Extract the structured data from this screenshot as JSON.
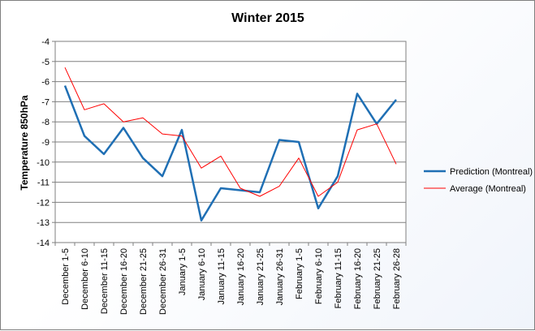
{
  "chart_data": {
    "type": "line",
    "title": "Winter 2015",
    "ylabel": "Temperature 850hPa",
    "xlabel": "",
    "ylim": [
      -14,
      -4
    ],
    "yticks": [
      -4,
      -5,
      -6,
      -7,
      -8,
      -9,
      -10,
      -11,
      -12,
      -13,
      -14
    ],
    "categories": [
      "December 1-5",
      "December 6-10",
      "December 11-15",
      "December 16-20",
      "December 21-25",
      "December 26-31",
      "January 1-5",
      "January 6-10",
      "January 11-15",
      "January 16-20",
      "January 21-25",
      "January 26-31",
      "February 1-5",
      "February 6-10",
      "February 11-15",
      "February 16-20",
      "February 21-25",
      "February 26-28"
    ],
    "series": [
      {
        "name": "Prediction (Montreal)",
        "color": "#1f6fb4",
        "values": [
          -6.2,
          -8.7,
          -9.6,
          -8.3,
          -9.8,
          -10.7,
          -8.4,
          -12.9,
          -11.3,
          -11.4,
          -11.5,
          -8.9,
          -9.0,
          -12.3,
          -10.7,
          -6.6,
          -8.1,
          -6.9
        ]
      },
      {
        "name": "Average (Montreal)",
        "color": "#ff0000",
        "values": [
          -5.3,
          -7.4,
          -7.1,
          -8.0,
          -7.8,
          -8.6,
          -8.7,
          -10.3,
          -9.7,
          -11.3,
          -11.7,
          -11.2,
          -9.8,
          -11.7,
          -11.0,
          -8.4,
          -8.1,
          -10.1
        ]
      }
    ],
    "grid": true,
    "legend": "right"
  }
}
